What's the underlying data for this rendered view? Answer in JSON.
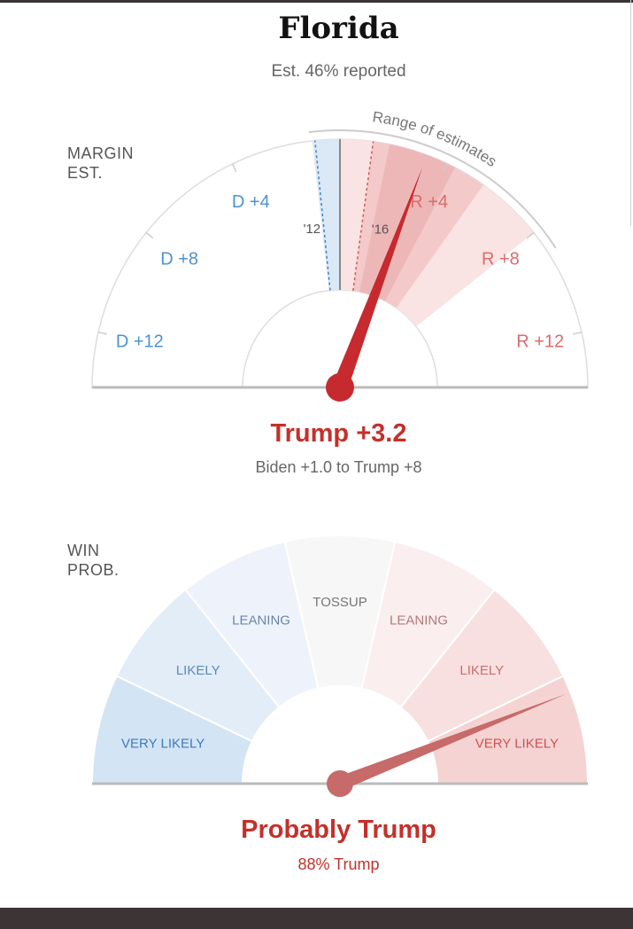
{
  "header": {
    "title": "Florida",
    "reported": "Est. 46% reported"
  },
  "margin_gauge": {
    "side_label_line1": "MARGIN",
    "side_label_line2": "EST.",
    "range_label": "Range of estimates",
    "result": "Trump +3.2",
    "range_text": "Biden +1.0 to Trump +8"
  },
  "win_gauge": {
    "side_label_line1": "WIN",
    "side_label_line2": "PROB.",
    "result": "Probably Trump",
    "probability_text": "88% Trump"
  },
  "colors": {
    "needle_red": "#c62a2e",
    "needle_light": "#c76a6a",
    "dem_text": "#4c93cf",
    "rep_text": "#dd6a6a",
    "dem_fill": "#dcebf7",
    "rep_fill": "#f8dcdc"
  },
  "chart_data": [
    {
      "type": "gauge",
      "name": "margin",
      "scale_min": -14,
      "scale_max": 14,
      "ticks": [
        {
          "value": -12,
          "label": "D +12",
          "side": "dem"
        },
        {
          "value": -8,
          "label": "D +8",
          "side": "dem"
        },
        {
          "value": -4,
          "label": "D +4",
          "side": "dem"
        },
        {
          "value": 4,
          "label": "R +4",
          "side": "rep"
        },
        {
          "value": 8,
          "label": "R +8",
          "side": "rep"
        },
        {
          "value": 12,
          "label": "R +12",
          "side": "rep"
        }
      ],
      "needle_value": 3.2,
      "range_outer": [
        -1.0,
        8.0
      ],
      "range_inner": [
        1.2,
        5.5
      ],
      "range_core": [
        1.8,
        4.3
      ],
      "past_results": [
        {
          "label": "'12",
          "value": -0.9
        },
        {
          "label": "'16",
          "value": 1.2
        }
      ]
    },
    {
      "type": "gauge",
      "name": "win_probability",
      "segments": [
        {
          "label": "VERY LIKELY",
          "side": "dem",
          "fill": "#d3e4f4",
          "text": "#3f7bbd"
        },
        {
          "label": "LIKELY",
          "side": "dem",
          "fill": "#e2edf8",
          "text": "#5b89bd"
        },
        {
          "label": "LEANING",
          "side": "dem",
          "fill": "#eef3fb",
          "text": "#6a85a8"
        },
        {
          "label": "TOSSUP",
          "side": "neutral",
          "fill": "#f7f7f7",
          "text": "#777777"
        },
        {
          "label": "LEANING",
          "side": "rep",
          "fill": "#fbeeee",
          "text": "#b07a7a"
        },
        {
          "label": "LIKELY",
          "side": "rep",
          "fill": "#f8e0e0",
          "text": "#c86e6e"
        },
        {
          "label": "VERY LIKELY",
          "side": "rep",
          "fill": "#f5d3d3",
          "text": "#cf5252"
        }
      ],
      "needle_probability": 0.88,
      "favored": "Trump"
    }
  ]
}
